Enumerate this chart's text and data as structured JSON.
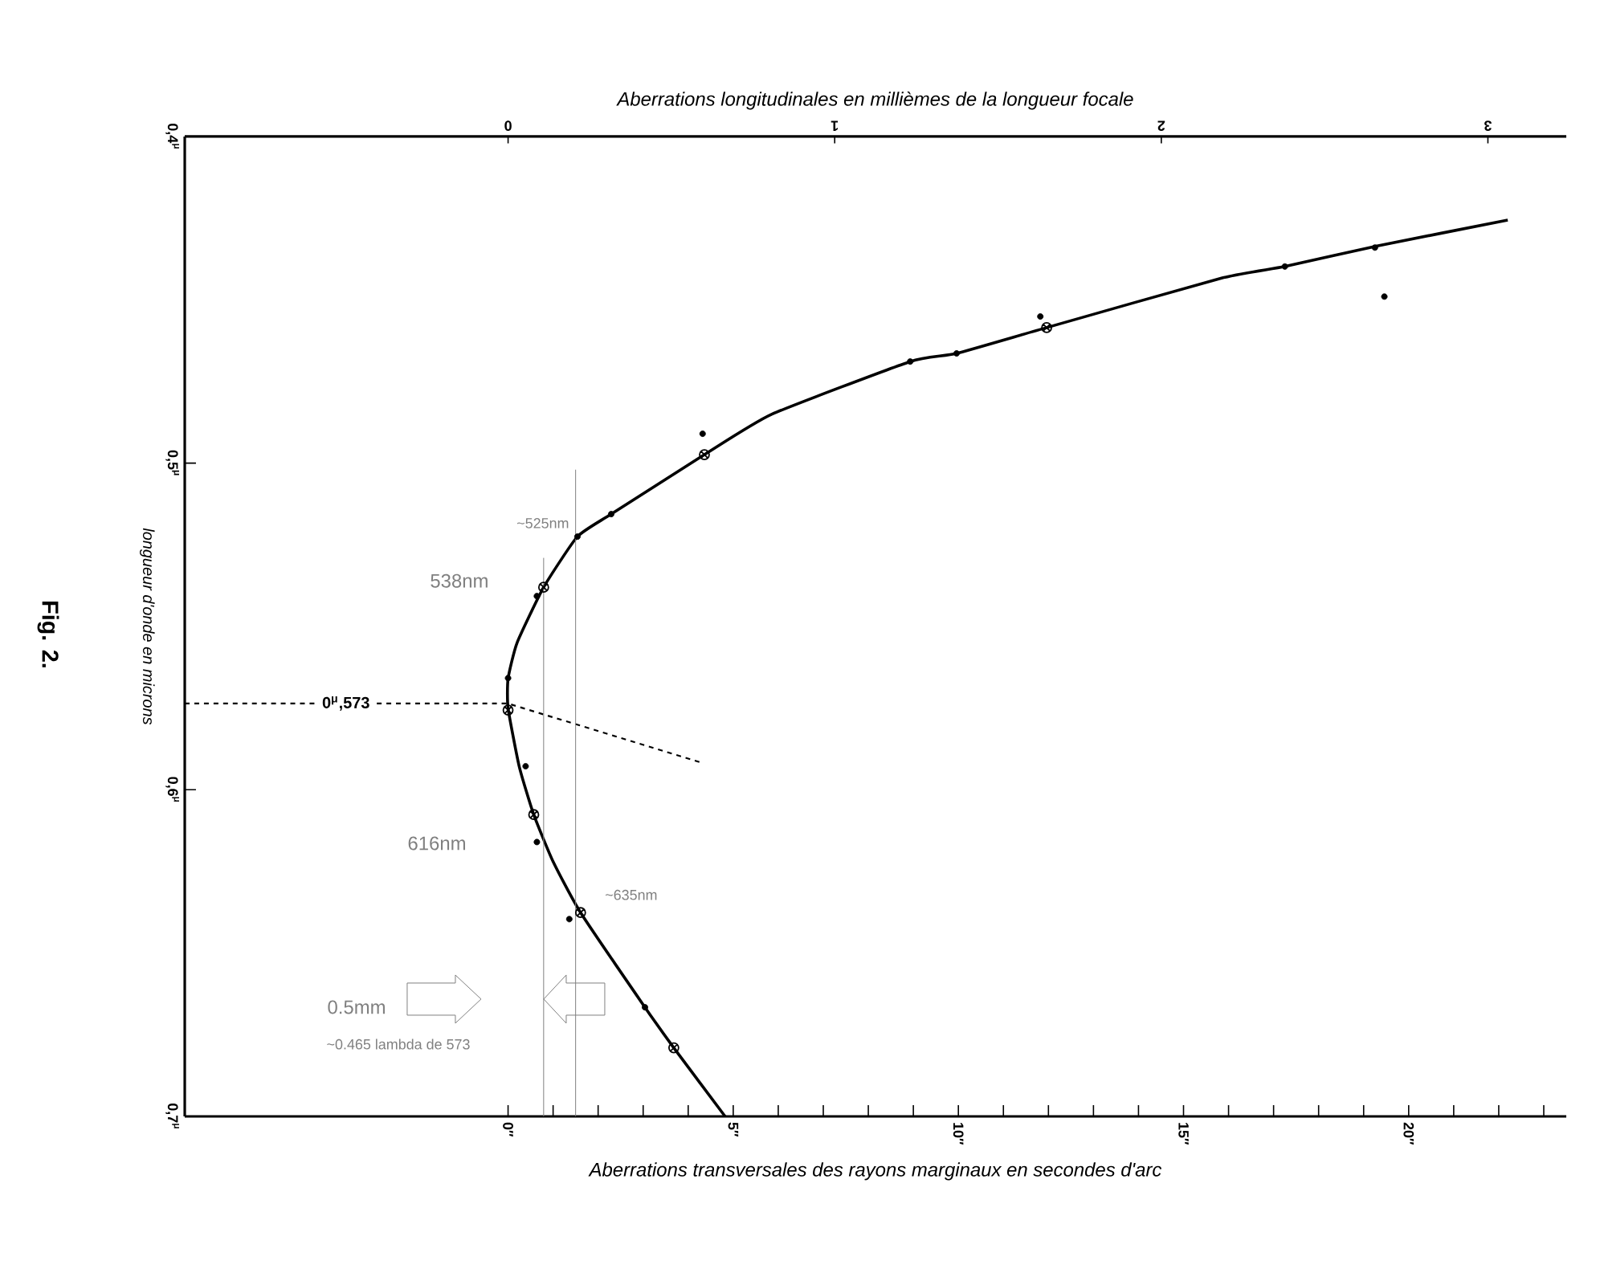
{
  "chart_data": {
    "type": "line",
    "title": "Fig. 2.",
    "xlabel": "Aberrations transversales des rayons marginaux en secondes d'arc",
    "ylabel": "longueur d'onde en microns",
    "x2label": "Aberrations longitudinales en millièmes de la longueur focale",
    "xlim": [
      -7.18,
      23.5
    ],
    "xticks": [
      {
        "value": 0,
        "label": "0″"
      },
      {
        "value": 1,
        "label": null
      },
      {
        "value": 2,
        "label": null
      },
      {
        "value": 3,
        "label": null
      },
      {
        "value": 4,
        "label": null
      },
      {
        "value": 5,
        "label": "5″"
      },
      {
        "value": 6,
        "label": null
      },
      {
        "value": 7,
        "label": null
      },
      {
        "value": 8,
        "label": null
      },
      {
        "value": 9,
        "label": null
      },
      {
        "value": 10,
        "label": "10″"
      },
      {
        "value": 11,
        "label": null
      },
      {
        "value": 12,
        "label": null
      },
      {
        "value": 13,
        "label": null
      },
      {
        "value": 14,
        "label": null
      },
      {
        "value": 15,
        "label": "15″"
      },
      {
        "value": 16,
        "label": null
      },
      {
        "value": 17,
        "label": null
      },
      {
        "value": 18,
        "label": null
      },
      {
        "value": 19,
        "label": null
      },
      {
        "value": 20,
        "label": "20″"
      },
      {
        "value": 21,
        "label": null
      },
      {
        "value": 22,
        "label": null
      },
      {
        "value": 23,
        "label": null
      }
    ],
    "x2lim": [
      -0.99,
      3.24
    ],
    "x2ticks": [
      0,
      1,
      2,
      3
    ],
    "ylim": [
      0.7,
      0.4
    ],
    "yticks": [
      {
        "value": 0.4,
        "label": "0,4$^{μ}$"
      },
      {
        "value": 0.5,
        "label": "0,5$^{μ}$"
      },
      {
        "value": 0.6,
        "label": "0,6$^{μ}$"
      },
      {
        "value": 0.7,
        "label": "0,7$^{μ}$"
      }
    ],
    "series": [
      {
        "color": "#000000",
        "marker": "none",
        "line_style": "solid",
        "x": [
          22.2,
          19.3,
          17.25,
          15.86,
          11.96,
          9.96,
          8.93,
          5.86,
          4.36,
          2.29,
          1.54,
          0.79,
          0.2,
          0.0,
          0.0,
          0.25,
          0.57,
          1.0,
          1.61,
          3.04,
          3.68,
          4.82
        ],
        "values": [
          0.4256,
          0.4335,
          0.4398,
          0.4433,
          0.4585,
          0.4664,
          0.4689,
          0.485,
          0.4974,
          0.5156,
          0.5225,
          0.538,
          0.555,
          0.566,
          0.575,
          0.593,
          0.6076,
          0.622,
          0.6376,
          0.6666,
          0.679,
          0.7
        ]
      },
      {
        "type": "scatter",
        "color": "#000000",
        "marker": "circle",
        "x": [
          19.25,
          17.25,
          9.96,
          8.93,
          11.82,
          4.32,
          2.29,
          1.54,
          0.64,
          0.0,
          0.39,
          0.64,
          1.36,
          3.04,
          19.46
        ],
        "values": [
          0.434,
          0.4398,
          0.4664,
          0.4689,
          0.4551,
          0.491,
          0.5156,
          0.5225,
          0.5407,
          0.5658,
          0.5928,
          0.616,
          0.6396,
          0.6666,
          0.449
        ]
      },
      {
        "type": "scatter",
        "color": "#000000",
        "marker": "cross",
        "x": [
          11.96,
          4.36,
          0.79,
          0.0,
          0.57,
          1.61,
          3.68
        ],
        "values": [
          0.4585,
          0.4974,
          0.538,
          0.5756,
          0.6076,
          0.6376,
          0.679
        ]
      },
      {
        "color": "#000000",
        "marker": "none",
        "line_style": "dashed",
        "x": [
          -7.18,
          0.0,
          4.32
        ],
        "values": [
          0.5736,
          0.5736,
          0.5918
        ]
      },
      {
        "color": "#808080",
        "marker": "none",
        "line_style": "solid",
        "x": [
          0.79,
          0.79
        ],
        "values": [
          0.529,
          0.7
        ]
      },
      {
        "color": "#808080",
        "marker": "none",
        "line_style": "solid",
        "x": [
          1.5,
          1.5
        ],
        "values": [
          0.502,
          0.7
        ]
      }
    ],
    "annotations": [
      {
        "text": "0$^{μ}$,573",
        "x": -3.6,
        "y": 0.5736
      },
      {
        "text": "~525nm",
        "x": 1.54,
        "y": 0.5225
      },
      {
        "text": "538nm",
        "x": 0.79,
        "y": 0.538
      },
      "616nm",
      {
        "text": "~635nm",
        "x": 1.61,
        "y": 0.6376
      },
      "0.5mm",
      "~0.465 lambda de 573"
    ]
  }
}
